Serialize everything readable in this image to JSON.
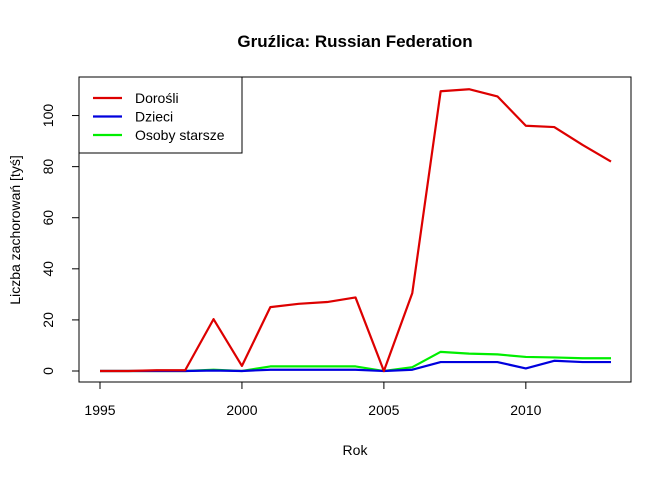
{
  "chart_data": {
    "type": "line",
    "title": "Gruźlica: Russian Federation",
    "xlabel": "Rok",
    "ylabel": "Liczba zachorowań [tyś]",
    "xlim": [
      1995,
      2013
    ],
    "ylim": [
      0,
      110
    ],
    "x_ticks": [
      1995,
      2000,
      2005,
      2010
    ],
    "y_ticks": [
      0,
      20,
      40,
      60,
      80,
      100
    ],
    "grid": false,
    "legend_position": "top-left",
    "x": [
      1995,
      1996,
      1997,
      1998,
      1999,
      2000,
      2001,
      2002,
      2003,
      2004,
      2005,
      2006,
      2007,
      2008,
      2009,
      2010,
      2011,
      2012,
      2013
    ],
    "series": [
      {
        "name": "Dorośli",
        "color": "#dd0000",
        "values": [
          0,
          0,
          0.3,
          0.3,
          20.3,
          2,
          25,
          26.3,
          27,
          28.8,
          0,
          30.5,
          109.5,
          110.3,
          107.5,
          96,
          95.5,
          88.5,
          82
        ]
      },
      {
        "name": "Dzieci",
        "color": "#0000dd",
        "values": [
          0,
          0,
          0,
          0,
          0.2,
          0,
          0.5,
          0.5,
          0.5,
          0.5,
          0,
          0.5,
          3.5,
          3.5,
          3.5,
          1,
          4,
          3.5,
          3.5
        ]
      },
      {
        "name": "Osoby starsze",
        "color": "#00ee00",
        "values": [
          0,
          0,
          0,
          0,
          0.5,
          0,
          1.8,
          1.8,
          1.8,
          1.8,
          0,
          1.5,
          7.5,
          6.8,
          6.5,
          5.5,
          5.3,
          5,
          5
        ]
      }
    ]
  }
}
